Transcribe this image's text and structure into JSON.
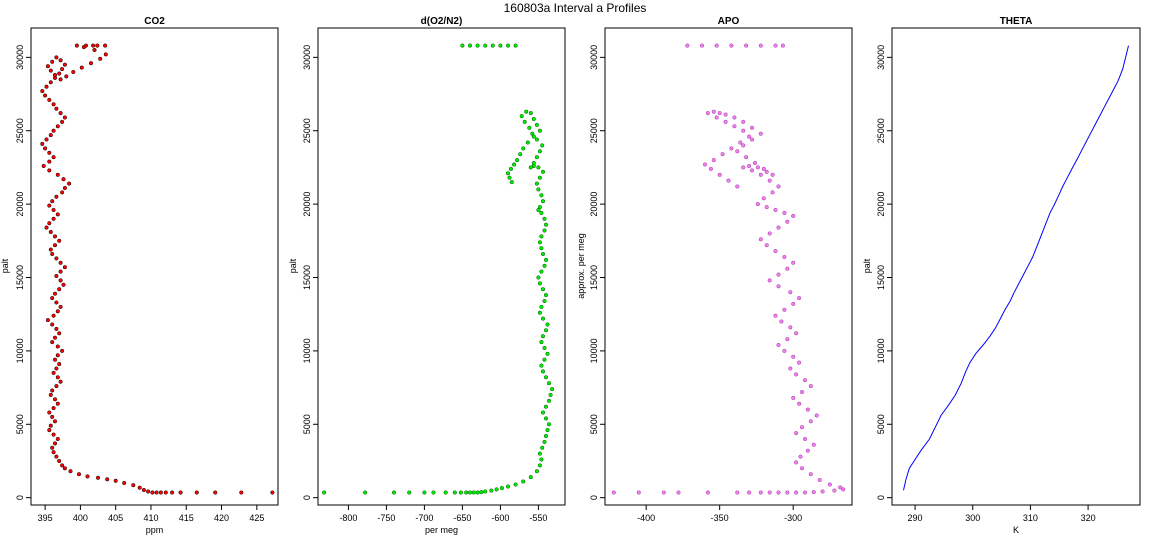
{
  "figure": {
    "title": "160803a   Interval a Profiles"
  },
  "chart_data": [
    {
      "type": "scatter",
      "title": "CO2",
      "xlabel": "ppm",
      "ylabel": "palt",
      "xlim": [
        393,
        428
      ],
      "ylim": [
        -500,
        32000
      ],
      "xticks": [
        395,
        400,
        405,
        410,
        415,
        420,
        425
      ],
      "yticks": [
        0,
        5000,
        10000,
        15000,
        20000,
        25000,
        30000
      ],
      "color": "#ff0000",
      "series": [
        {
          "x": [
            427.2,
            422.8,
            419.1,
            416.5,
            414.2,
            413.0,
            412.1,
            411.4,
            410.8,
            410.2,
            409.6,
            409.0,
            408.4,
            407.5,
            406.2,
            405.0,
            403.8,
            402.5,
            401.0,
            399.8,
            398.6,
            397.8,
            397.4,
            397.0,
            396.6,
            396.2,
            396.0,
            396.4,
            396.8,
            396.2,
            395.6,
            395.8,
            396.4,
            396.0,
            395.6,
            396.2,
            396.8,
            396.4,
            395.8,
            396.0,
            396.6,
            397.2,
            396.8,
            396.2,
            396.6,
            397.0,
            396.4,
            396.8,
            397.4,
            396.8,
            396.0,
            396.4,
            397.0,
            396.6,
            396.0,
            395.4,
            396.2,
            396.8,
            397.2,
            396.6,
            396.0,
            396.4,
            397.0,
            397.6,
            397.2,
            396.6,
            397.2,
            397.8,
            397.2,
            396.6,
            396.0,
            395.8,
            396.4,
            397.0,
            396.4,
            395.8,
            395.2,
            395.6,
            396.2,
            396.8,
            396.2,
            395.6,
            396.0,
            396.6,
            397.4,
            397.8,
            398.4,
            397.6,
            396.8,
            395.6,
            394.8,
            395.6,
            396.2,
            395.6,
            395.0,
            394.6,
            395.2,
            395.8,
            396.2,
            396.8,
            397.4,
            397.8,
            397.2,
            396.6,
            396.2,
            395.6,
            395.0,
            394.6,
            395.2,
            395.8,
            396.4,
            397.0,
            397.4,
            397.8,
            397.2,
            396.6,
            396.0,
            395.4,
            395.8,
            396.4,
            397.2,
            398.0,
            399.0,
            400.2,
            401.5,
            402.8,
            403.6,
            402.0,
            400.5,
            399.5,
            400.8,
            402.4,
            403.5,
            401.8
          ],
          "y": [
            350,
            350,
            350,
            350,
            350,
            350,
            350,
            350,
            350,
            350,
            420,
            520,
            680,
            850,
            1000,
            1150,
            1250,
            1350,
            1450,
            1600,
            1800,
            2000,
            2200,
            2500,
            2800,
            3100,
            3400,
            3700,
            4000,
            4300,
            4600,
            4900,
            5200,
            5500,
            5800,
            6100,
            6400,
            6700,
            7000,
            7300,
            7600,
            7900,
            8200,
            8500,
            8800,
            9100,
            9400,
            9700,
            10000,
            10300,
            10600,
            10900,
            11200,
            11500,
            11800,
            12100,
            12400,
            12700,
            13000,
            13300,
            13600,
            13900,
            14200,
            14500,
            14800,
            15100,
            15400,
            15700,
            16000,
            16300,
            16600,
            16900,
            17200,
            17500,
            17800,
            18100,
            18400,
            18700,
            19000,
            19300,
            19600,
            19900,
            20200,
            20500,
            20800,
            21100,
            21400,
            21700,
            22000,
            22300,
            22600,
            22900,
            23200,
            23500,
            23800,
            24100,
            24400,
            24700,
            25000,
            25300,
            25600,
            25900,
            26200,
            26500,
            26800,
            27100,
            27400,
            27700,
            28000,
            28300,
            28600,
            28900,
            29200,
            29500,
            29800,
            30000,
            29700,
            29400,
            29100,
            28800,
            28500,
            28700,
            29000,
            29300,
            29600,
            29900,
            30200,
            30500,
            30700,
            30800,
            30800,
            30800,
            30800,
            30800
          ]
        }
      ]
    },
    {
      "type": "scatter",
      "title": "d(O2/N2)",
      "xlabel": "per meg",
      "ylabel": "palt",
      "xlim": [
        -840,
        -515
      ],
      "ylim": [
        -500,
        32000
      ],
      "xticks": [
        -800,
        -750,
        -700,
        -650,
        -600,
        -550
      ],
      "yticks": [
        0,
        5000,
        10000,
        15000,
        20000,
        25000,
        30000
      ],
      "color": "#00ee00",
      "series": [
        {
          "x": [
            -832,
            -778,
            -740,
            -720,
            -700,
            -688,
            -672,
            -660,
            -652,
            -645,
            -640,
            -635,
            -630,
            -625,
            -620,
            -612,
            -605,
            -598,
            -590,
            -580,
            -570,
            -560,
            -552,
            -548,
            -546,
            -548,
            -545,
            -542,
            -540,
            -538,
            -536,
            -540,
            -544,
            -540,
            -536,
            -534,
            -532,
            -536,
            -540,
            -544,
            -546,
            -542,
            -538,
            -542,
            -546,
            -544,
            -540,
            -538,
            -544,
            -548,
            -546,
            -542,
            -540,
            -544,
            -548,
            -550,
            -546,
            -542,
            -540,
            -544,
            -546,
            -548,
            -546,
            -542,
            -540,
            -542,
            -546,
            -550,
            -548,
            -544,
            -546,
            -550,
            -552,
            -548,
            -544,
            -550,
            -556,
            -560,
            -556,
            -552,
            -548,
            -545,
            -552,
            -558,
            -562,
            -568,
            -572,
            -566,
            -560,
            -556,
            -552,
            -548,
            -556,
            -564,
            -570,
            -574,
            -578,
            -582,
            -586,
            -590,
            -588,
            -585,
            -650,
            -640,
            -630,
            -620,
            -610,
            -600,
            -590,
            -580
          ],
          "y": [
            350,
            350,
            350,
            350,
            350,
            350,
            350,
            350,
            350,
            350,
            350,
            350,
            350,
            380,
            420,
            480,
            560,
            650,
            760,
            900,
            1100,
            1400,
            1800,
            2200,
            2600,
            3000,
            3400,
            3800,
            4200,
            4600,
            5000,
            5400,
            5800,
            6200,
            6600,
            7000,
            7400,
            7800,
            8200,
            8600,
            9000,
            9400,
            9800,
            10200,
            10600,
            11000,
            11400,
            11800,
            12200,
            12600,
            13000,
            13400,
            13800,
            14200,
            14600,
            15000,
            15400,
            15800,
            16200,
            16600,
            17000,
            17400,
            17800,
            18200,
            18600,
            19000,
            19400,
            19600,
            19800,
            20200,
            20600,
            21000,
            21400,
            21800,
            22200,
            22500,
            22600,
            22500,
            22800,
            23200,
            23600,
            24000,
            24400,
            24800,
            25200,
            25600,
            26000,
            26300,
            26200,
            25800,
            25400,
            25000,
            24600,
            24200,
            23800,
            23400,
            23000,
            22700,
            22400,
            22100,
            21800,
            21500,
            30800,
            30800,
            30800,
            30800,
            30800,
            30800,
            30800,
            30800
          ]
        }
      ]
    },
    {
      "type": "scatter",
      "title": "APO",
      "xlabel": "",
      "ylabel": "approx. per meg",
      "xlim": [
        -428,
        -260
      ],
      "ylim": [
        -500,
        32000
      ],
      "xticks": [
        -400,
        -350,
        -300
      ],
      "yticks": [
        0,
        5000,
        10000,
        15000,
        20000,
        25000,
        30000
      ],
      "color": "#ee82ee",
      "series": [
        {
          "x": [
            -422,
            -405,
            -388,
            -378,
            -358,
            -338,
            -330,
            -322,
            -316,
            -310,
            -304,
            -298,
            -292,
            -286,
            -280,
            -272,
            -266,
            -268,
            -275,
            -282,
            -288,
            -294,
            -298,
            -295,
            -290,
            -286,
            -292,
            -298,
            -294,
            -288,
            -284,
            -290,
            -296,
            -300,
            -294,
            -288,
            -292,
            -298,
            -302,
            -296,
            -300,
            -306,
            -310,
            -304,
            -298,
            -302,
            -308,
            -312,
            -306,
            -300,
            -296,
            -302,
            -310,
            -316,
            -310,
            -304,
            -300,
            -306,
            -312,
            -318,
            -322,
            -316,
            -310,
            -304,
            -300,
            -306,
            -312,
            -318,
            -324,
            -320,
            -314,
            -310,
            -316,
            -322,
            -328,
            -334,
            -330,
            -324,
            -318,
            -314,
            -320,
            -326,
            -332,
            -338,
            -334,
            -328,
            -322,
            -328,
            -334,
            -340,
            -346,
            -350,
            -354,
            -358,
            -352,
            -346,
            -340,
            -334,
            -330,
            -336,
            -342,
            -348,
            -354,
            -360,
            -356,
            -350,
            -344,
            -338,
            -372,
            -362,
            -352,
            -342,
            -332,
            -322,
            -312,
            -307
          ],
          "y": [
            350,
            350,
            350,
            350,
            350,
            350,
            350,
            350,
            350,
            350,
            350,
            350,
            350,
            380,
            420,
            480,
            560,
            700,
            900,
            1200,
            1600,
            2000,
            2400,
            2800,
            3200,
            3600,
            4000,
            4400,
            4800,
            5200,
            5600,
            6000,
            6400,
            6800,
            7200,
            7600,
            8000,
            8400,
            8800,
            9200,
            9600,
            10000,
            10400,
            10800,
            11200,
            11600,
            12000,
            12400,
            12800,
            13200,
            13600,
            14000,
            14400,
            14800,
            15200,
            15600,
            16000,
            16400,
            16800,
            17200,
            17600,
            18000,
            18400,
            18800,
            19200,
            19400,
            19600,
            19800,
            20000,
            20400,
            20800,
            21200,
            21600,
            22000,
            22300,
            22500,
            22600,
            22500,
            22200,
            22000,
            22400,
            22800,
            23200,
            23600,
            24000,
            24400,
            24800,
            25200,
            25600,
            25900,
            26100,
            26200,
            26300,
            26200,
            25900,
            25600,
            25300,
            25000,
            24600,
            24200,
            23800,
            23400,
            23000,
            22700,
            22400,
            22000,
            21600,
            21200,
            30800,
            30800,
            30800,
            30800,
            30800,
            30800,
            30800,
            30800
          ]
        }
      ]
    },
    {
      "type": "line",
      "title": "THETA",
      "xlabel": "K",
      "ylabel": "palt",
      "xlim": [
        286,
        329
      ],
      "ylim": [
        -500,
        32000
      ],
      "xticks": [
        290,
        300,
        310,
        320
      ],
      "yticks": [
        0,
        5000,
        10000,
        15000,
        20000,
        25000,
        30000
      ],
      "color": "#0000ff",
      "series": [
        {
          "x": [
            288.0,
            288.4,
            289.0,
            290.0,
            291.0,
            292.5,
            293.5,
            294.5,
            295.8,
            297.0,
            298.0,
            298.8,
            299.5,
            300.5,
            301.8,
            303.0,
            304.0,
            304.8,
            305.6,
            306.5,
            307.2,
            308.0,
            308.8,
            309.6,
            310.4,
            311.0,
            311.8,
            312.6,
            313.4,
            314.2,
            314.9,
            315.6,
            316.4,
            317.2,
            318.0,
            318.8,
            319.6,
            320.4,
            321.2,
            322.0,
            322.8,
            323.6,
            324.4,
            325.2,
            326.0,
            326.5,
            327.0
          ],
          "y": [
            500,
            1200,
            2000,
            2600,
            3200,
            4000,
            4800,
            5600,
            6300,
            7000,
            7800,
            8600,
            9200,
            9800,
            10400,
            11000,
            11600,
            12200,
            12800,
            13400,
            14000,
            14600,
            15200,
            15800,
            16400,
            17000,
            17800,
            18600,
            19400,
            20000,
            20600,
            21200,
            21800,
            22400,
            23000,
            23600,
            24200,
            24800,
            25400,
            26000,
            26600,
            27200,
            27800,
            28400,
            29200,
            30000,
            30800
          ]
        }
      ]
    }
  ]
}
